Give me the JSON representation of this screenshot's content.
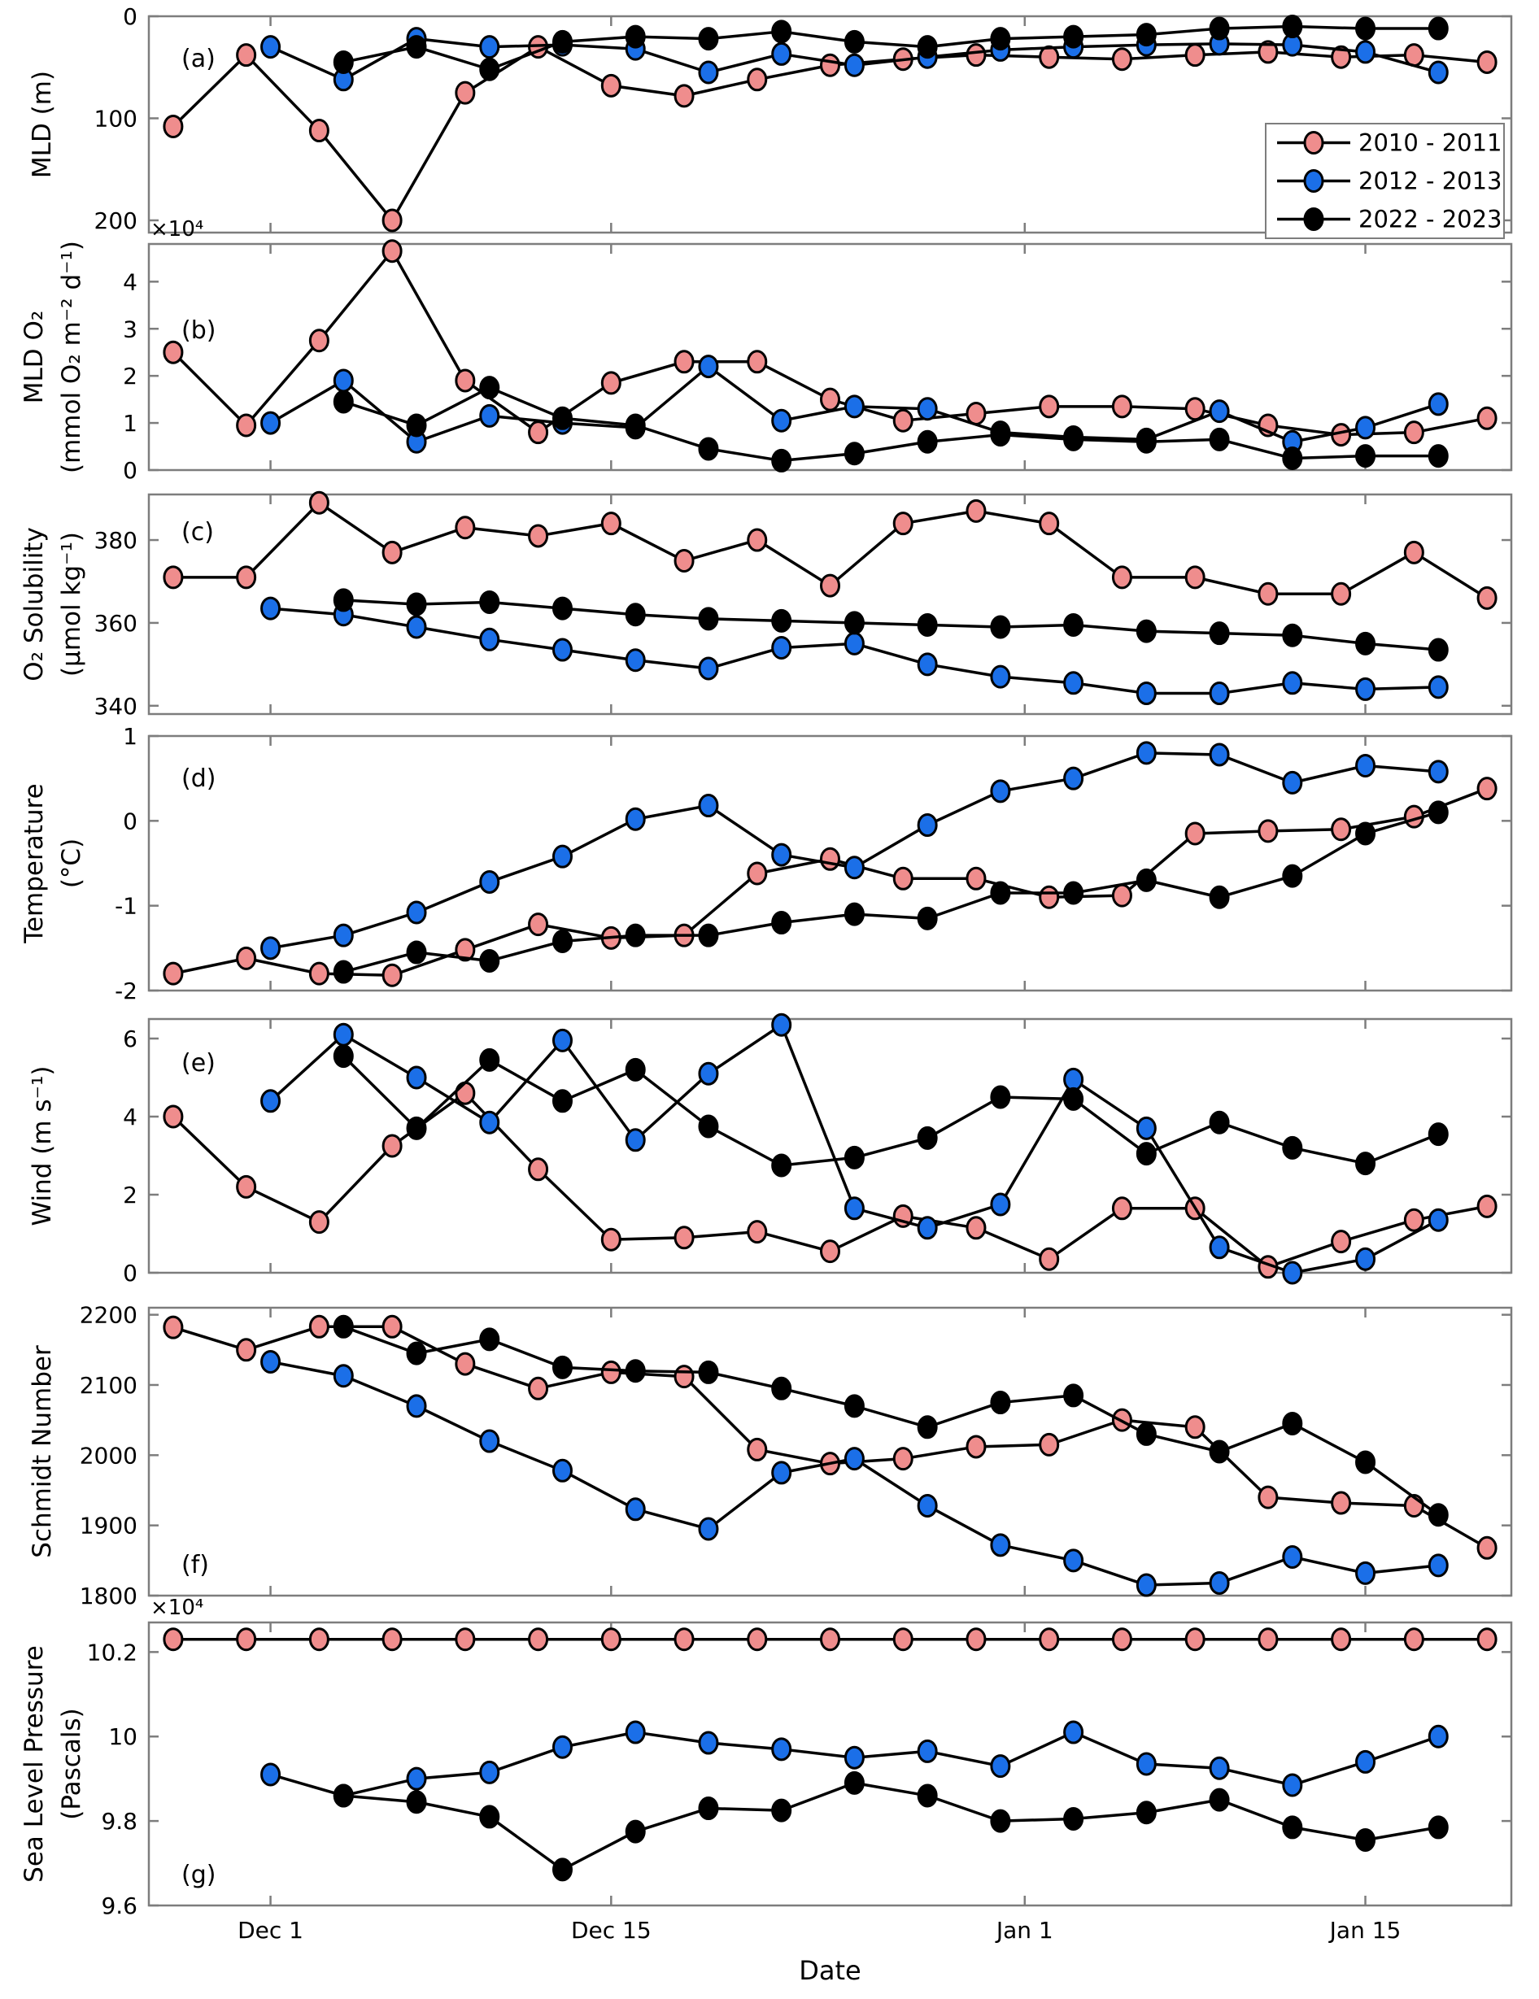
{
  "figure": {
    "bg": "#ffffff",
    "axis_color": "#7d7d7d",
    "line_color": "#000000",
    "text_color": "#000000"
  },
  "chart_data": {
    "type": "line",
    "title": "",
    "xlabel": "Date",
    "x_unit": "days since Nov 26",
    "xlim": [
      0,
      56
    ],
    "grid": false,
    "legend_position": "top-right of panel a",
    "xticks": [
      {
        "day": 5,
        "label": "Dec 1"
      },
      {
        "day": 19,
        "label": "Dec 15"
      },
      {
        "day": 36,
        "label": "Jan 1"
      },
      {
        "day": 50,
        "label": "Jan 15"
      }
    ],
    "series": [
      {
        "name": "2010 - 2011",
        "color": "#ef8d8d",
        "days": [
          1,
          4,
          7,
          10,
          13,
          16,
          19,
          22,
          25,
          28,
          31,
          34,
          37,
          40,
          43,
          46,
          49,
          52,
          55
        ]
      },
      {
        "name": "2012 - 2013",
        "color": "#1b6fe8",
        "days": [
          5,
          8,
          11,
          14,
          17,
          20,
          23,
          26,
          29,
          32,
          35,
          38,
          41,
          44,
          47,
          50,
          53
        ]
      },
      {
        "name": "2022 - 2023",
        "color": "#000000",
        "days": [
          8,
          11,
          14,
          17,
          20,
          23,
          26,
          29,
          32,
          35,
          38,
          41,
          44,
          47,
          50,
          53
        ]
      }
    ],
    "panels": [
      {
        "id": "a",
        "label": "(a)",
        "ylabel": [
          "MLD (m)"
        ],
        "ylim": [
          0,
          212
        ],
        "reverse_y": true,
        "offset_label": null,
        "yticks": [
          0,
          100,
          200
        ],
        "ytick_labels": [
          "0",
          "100",
          "200"
        ],
        "values": [
          [
            108,
            38,
            112,
            200,
            75,
            30,
            68,
            78,
            62,
            48,
            42,
            38,
            40,
            42,
            38,
            35,
            40,
            38,
            45
          ],
          [
            30,
            62,
            22,
            30,
            28,
            32,
            55,
            37,
            48,
            40,
            33,
            30,
            28,
            27,
            28,
            35,
            55
          ],
          [
            45,
            30,
            52,
            25,
            20,
            22,
            15,
            25,
            30,
            22,
            20,
            18,
            12,
            10,
            12,
            12
          ]
        ]
      },
      {
        "id": "b",
        "label": "(b)",
        "ylabel": [
          "MLD O₂",
          "(mmol O₂ m⁻² d⁻¹)"
        ],
        "ylim": [
          0,
          4.8
        ],
        "reverse_y": false,
        "offset_label": "×10⁴",
        "yticks": [
          0,
          1,
          2,
          3,
          4
        ],
        "ytick_labels": [
          "0",
          "1",
          "2",
          "3",
          "4"
        ],
        "values": [
          [
            2.5,
            0.95,
            2.75,
            4.65,
            1.9,
            0.8,
            1.85,
            2.3,
            2.3,
            1.5,
            1.05,
            1.2,
            1.35,
            1.35,
            1.3,
            0.95,
            0.75,
            0.8,
            1.1
          ],
          [
            1.0,
            1.9,
            0.6,
            1.15,
            1.0,
            0.9,
            2.2,
            1.05,
            1.35,
            1.3,
            0.8,
            0.7,
            0.65,
            1.25,
            0.6,
            0.9,
            1.4
          ],
          [
            1.45,
            0.95,
            1.75,
            1.1,
            0.95,
            0.45,
            0.2,
            0.35,
            0.6,
            0.75,
            0.65,
            0.6,
            0.65,
            0.25,
            0.3,
            0.3
          ]
        ]
      },
      {
        "id": "c",
        "label": "(c)",
        "ylabel": [
          "O₂ Solubility",
          "(μmol kg⁻¹)"
        ],
        "ylim": [
          338,
          391
        ],
        "reverse_y": false,
        "offset_label": null,
        "yticks": [
          340,
          360,
          380
        ],
        "ytick_labels": [
          "340",
          "360",
          "380"
        ],
        "values": [
          [
            371,
            371,
            389,
            377,
            383,
            381,
            384,
            375,
            380,
            369,
            384,
            387,
            384,
            371,
            371,
            367,
            367,
            377,
            366
          ],
          [
            363.5,
            362,
            359,
            356,
            353.5,
            351,
            349,
            354,
            355,
            350,
            347,
            345.5,
            343,
            343,
            345.5,
            344,
            344.5
          ],
          [
            365.5,
            364.5,
            365,
            363.5,
            362,
            361,
            360.5,
            360,
            359.5,
            359,
            359.5,
            358,
            357.5,
            357,
            355,
            353.5
          ]
        ]
      },
      {
        "id": "d",
        "label": "(d)",
        "ylabel": [
          "Temperature",
          "(°C)"
        ],
        "ylim": [
          -2,
          1
        ],
        "reverse_y": false,
        "offset_label": null,
        "yticks": [
          -2,
          -1,
          0,
          1
        ],
        "ytick_labels": [
          "-2",
          "-1",
          "0",
          "1"
        ],
        "values": [
          [
            -1.8,
            -1.62,
            -1.8,
            -1.82,
            -1.52,
            -1.22,
            -1.38,
            -1.35,
            -0.62,
            -0.45,
            -0.68,
            -0.68,
            -0.9,
            -0.88,
            -0.15,
            -0.12,
            -0.1,
            0.05,
            0.38
          ],
          [
            -1.5,
            -1.35,
            -1.08,
            -0.72,
            -0.42,
            0.02,
            0.18,
            -0.4,
            -0.55,
            -0.05,
            0.35,
            0.5,
            0.8,
            0.78,
            0.45,
            0.65,
            0.58
          ],
          [
            -1.78,
            -1.55,
            -1.65,
            -1.42,
            -1.35,
            -1.35,
            -1.2,
            -1.1,
            -1.15,
            -0.85,
            -0.85,
            -0.7,
            -0.9,
            -0.65,
            -0.15,
            0.1
          ]
        ]
      },
      {
        "id": "e",
        "label": "(e)",
        "ylabel": [
          "Wind (m s⁻¹)"
        ],
        "ylim": [
          0,
          6.5
        ],
        "reverse_y": false,
        "offset_label": null,
        "yticks": [
          0,
          2,
          4,
          6
        ],
        "ytick_labels": [
          "0",
          "2",
          "4",
          "6"
        ],
        "values": [
          [
            4.0,
            2.2,
            1.3,
            3.25,
            4.6,
            2.65,
            0.85,
            0.9,
            1.05,
            0.55,
            1.45,
            1.15,
            0.35,
            1.65,
            1.65,
            0.15,
            0.8,
            1.35,
            1.7
          ],
          [
            4.4,
            6.1,
            5.0,
            3.85,
            5.95,
            3.4,
            5.1,
            6.35,
            1.65,
            1.15,
            1.75,
            4.95,
            3.7,
            0.65,
            0.0,
            0.35,
            1.35
          ],
          [
            5.55,
            3.7,
            5.45,
            4.4,
            5.2,
            3.75,
            2.75,
            2.95,
            3.45,
            4.5,
            4.45,
            3.05,
            3.85,
            3.2,
            2.8,
            3.55
          ]
        ]
      },
      {
        "id": "f",
        "label": "(f)",
        "ylabel": [
          "Schmidt Number"
        ],
        "ylim": [
          1800,
          2210
        ],
        "reverse_y": false,
        "offset_label": null,
        "yticks": [
          1800,
          1900,
          2000,
          2100,
          2200
        ],
        "ytick_labels": [
          "1800",
          "1900",
          "2000",
          "2100",
          "2200"
        ],
        "values": [
          [
            2182,
            2150,
            2183,
            2183,
            2130,
            2095,
            2118,
            2112,
            2008,
            1988,
            1995,
            2012,
            2015,
            2050,
            2040,
            1940,
            1932,
            1928,
            1868
          ],
          [
            2133,
            2113,
            2070,
            2020,
            1978,
            1923,
            1895,
            1975,
            1995,
            1928,
            1872,
            1850,
            1815,
            1818,
            1855,
            1832,
            1843
          ],
          [
            2183,
            2145,
            2165,
            2125,
            2120,
            2118,
            2095,
            2070,
            2040,
            2075,
            2085,
            2030,
            2005,
            2045,
            1990,
            1915
          ]
        ]
      },
      {
        "id": "g",
        "label": "(g)",
        "ylabel": [
          "Sea Level Pressure",
          "(Pascals)"
        ],
        "ylim": [
          9.6,
          10.27
        ],
        "reverse_y": false,
        "offset_label": "×10⁴",
        "yticks": [
          9.6,
          9.8,
          10,
          10.2
        ],
        "ytick_labels": [
          "9.6",
          "9.8",
          "10",
          "10.2"
        ],
        "values": [
          [
            10.23,
            10.23,
            10.23,
            10.23,
            10.23,
            10.23,
            10.23,
            10.23,
            10.23,
            10.23,
            10.23,
            10.23,
            10.23,
            10.23,
            10.23,
            10.23,
            10.23,
            10.23,
            10.23
          ],
          [
            9.91,
            9.86,
            9.9,
            9.915,
            9.975,
            10.01,
            9.985,
            9.97,
            9.95,
            9.965,
            9.93,
            10.01,
            9.935,
            9.925,
            9.885,
            9.94,
            10.0
          ],
          [
            9.86,
            9.845,
            9.81,
            9.685,
            9.775,
            9.83,
            9.825,
            9.89,
            9.86,
            9.8,
            9.805,
            9.82,
            9.85,
            9.785,
            9.755,
            9.785
          ]
        ]
      }
    ]
  }
}
